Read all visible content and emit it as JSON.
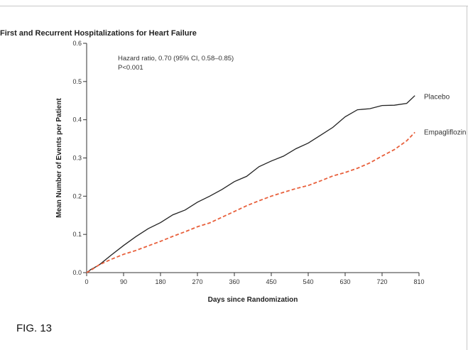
{
  "chart_data": {
    "type": "line",
    "title": "First and Recurrent Hospitalizations for Heart Failure",
    "xlabel": "Days since Randomization",
    "ylabel": "Mean Number of Events per Patient",
    "xlim": [
      0,
      810
    ],
    "ylim": [
      0,
      0.6
    ],
    "x_ticks": [
      0,
      90,
      180,
      270,
      360,
      450,
      540,
      630,
      720,
      810
    ],
    "y_ticks": [
      "0.0",
      "0.1",
      "0.2",
      "0.3",
      "0.4",
      "0.5",
      "0.6"
    ],
    "grid": false,
    "annotation_lines": [
      "Hazard ratio, 0.70 (95% CI, 0.58–0.85)",
      "P<0.001"
    ],
    "series": [
      {
        "name": "Placebo",
        "color": "#222222",
        "style": "solid",
        "points": [
          [
            0,
            0
          ],
          [
            10,
            0.008
          ],
          [
            30,
            0.022
          ],
          [
            60,
            0.045
          ],
          [
            90,
            0.072
          ],
          [
            120,
            0.092
          ],
          [
            150,
            0.115
          ],
          [
            180,
            0.133
          ],
          [
            210,
            0.15
          ],
          [
            240,
            0.165
          ],
          [
            270,
            0.182
          ],
          [
            300,
            0.2
          ],
          [
            330,
            0.22
          ],
          [
            360,
            0.237
          ],
          [
            390,
            0.253
          ],
          [
            420,
            0.275
          ],
          [
            450,
            0.292
          ],
          [
            480,
            0.307
          ],
          [
            510,
            0.323
          ],
          [
            540,
            0.34
          ],
          [
            570,
            0.357
          ],
          [
            600,
            0.38
          ],
          [
            630,
            0.41
          ],
          [
            660,
            0.425
          ],
          [
            690,
            0.43
          ],
          [
            720,
            0.435
          ],
          [
            750,
            0.438
          ],
          [
            780,
            0.445
          ],
          [
            800,
            0.462
          ]
        ]
      },
      {
        "name": "Empagliflozin",
        "color": "#e8603c",
        "style": "dashed",
        "points": [
          [
            0,
            0
          ],
          [
            10,
            0.006
          ],
          [
            30,
            0.02
          ],
          [
            60,
            0.035
          ],
          [
            90,
            0.048
          ],
          [
            120,
            0.058
          ],
          [
            150,
            0.07
          ],
          [
            180,
            0.082
          ],
          [
            210,
            0.095
          ],
          [
            240,
            0.107
          ],
          [
            270,
            0.12
          ],
          [
            300,
            0.13
          ],
          [
            330,
            0.145
          ],
          [
            360,
            0.16
          ],
          [
            390,
            0.175
          ],
          [
            420,
            0.188
          ],
          [
            450,
            0.2
          ],
          [
            480,
            0.21
          ],
          [
            510,
            0.22
          ],
          [
            540,
            0.228
          ],
          [
            570,
            0.24
          ],
          [
            600,
            0.253
          ],
          [
            630,
            0.262
          ],
          [
            660,
            0.273
          ],
          [
            690,
            0.287
          ],
          [
            720,
            0.305
          ],
          [
            750,
            0.322
          ],
          [
            780,
            0.345
          ],
          [
            800,
            0.367
          ]
        ]
      }
    ]
  },
  "caption": "FIG. 13"
}
